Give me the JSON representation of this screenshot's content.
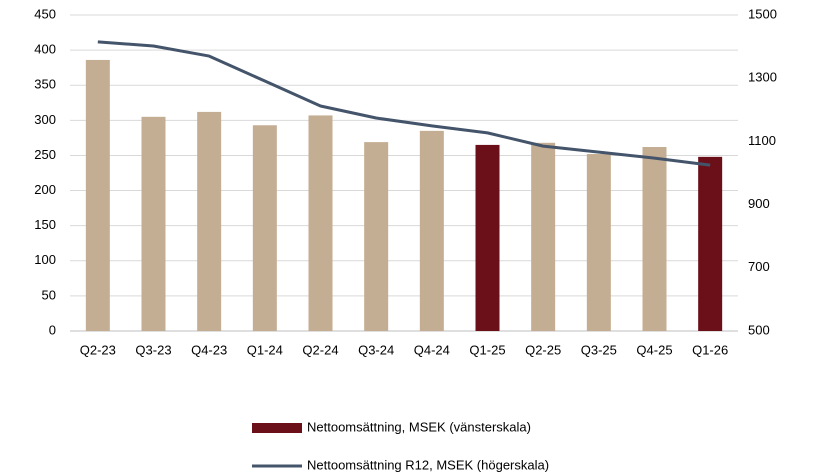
{
  "chart_data": {
    "type": "bar",
    "categories": [
      "Q2-23",
      "Q3-23",
      "Q4-23",
      "Q1-24",
      "Q2-24",
      "Q3-24",
      "Q4-24",
      "Q1-25",
      "Q2-25",
      "Q3-25",
      "Q4-25",
      "Q1-26"
    ],
    "series": [
      {
        "name": "Nettoomsättning, MSEK (vänsterskala)",
        "type": "bar",
        "color": "#6b1018",
        "colors": [
          "#c4ae93",
          "#c4ae93",
          "#c4ae93",
          "#c4ae93",
          "#c4ae93",
          "#c4ae93",
          "#c4ae93",
          "#6b1018",
          "#c4ae93",
          "#c4ae93",
          "#c4ae93",
          "#6b1018"
        ],
        "values": [
          386,
          305,
          312,
          293,
          307,
          269,
          285,
          265,
          268,
          252,
          262,
          248
        ]
      },
      {
        "name": "Nettoomsättning R12, MSEK (högerskala)",
        "type": "line",
        "color": "#44546a",
        "axis": "y2",
        "values": [
          1415,
          1402,
          1370,
          1291,
          1212,
          1174,
          1149,
          1127,
          1085,
          1066,
          1047,
          1025
        ]
      }
    ],
    "ylim": [
      0,
      450
    ],
    "yticks": [
      0,
      50,
      100,
      150,
      200,
      250,
      300,
      350,
      400,
      450
    ],
    "y2lim": [
      500,
      1500
    ],
    "y2ticks": [
      500,
      700,
      900,
      1100,
      1300,
      1500
    ],
    "grid": true,
    "legend": "bottom"
  }
}
